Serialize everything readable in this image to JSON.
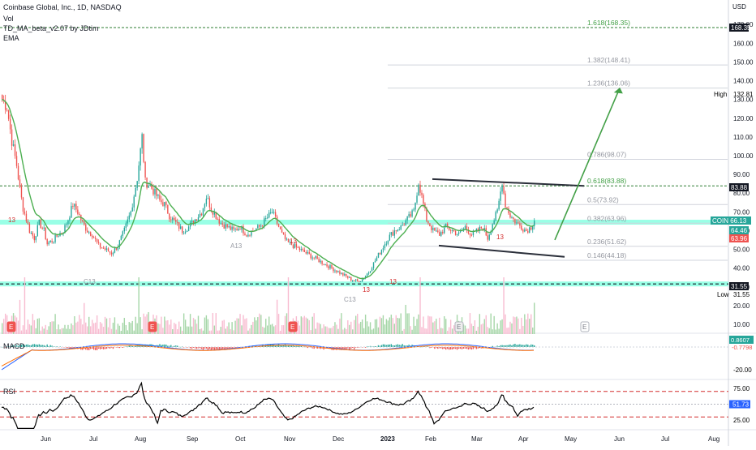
{
  "header": {
    "title": "Coinbase Global, Inc., 1D, NASDAQ",
    "vol": "Vol",
    "indicator": "TD_MA_beta_v2.07 by JDtim",
    "ema": "EMA"
  },
  "panes": {
    "macd": "MACD",
    "rsi": "RSI"
  },
  "currency": "USD",
  "colors": {
    "up": "#26a69a",
    "down": "#ef5350",
    "ema": "#4caf50",
    "band": "#80ffe0",
    "fib": "#b2b5be",
    "green_text": "#43a047",
    "vol_up": "#a5d6a7",
    "vol_down": "#f8bbd0",
    "macd_line": "#2962ff",
    "signal_line": "#ff6d00",
    "rsi_line": "#000000"
  },
  "chart_data": {
    "type": "candlestick",
    "y_axis": {
      "min": 0,
      "max": 180,
      "ticks": [
        10,
        20,
        30,
        40,
        50,
        60,
        70,
        80,
        90,
        100,
        110,
        120,
        130,
        140,
        150,
        160,
        170
      ]
    },
    "x_ticks": [
      "Jun",
      "Jul",
      "Aug",
      "Sep",
      "Oct",
      "Nov",
      "Dec",
      "2023",
      "Feb",
      "Mar",
      "Apr",
      "May",
      "Jun",
      "Jul",
      "Aug"
    ],
    "price_badges": [
      {
        "label": "COIN",
        "value": "66.13"
      },
      {
        "value": "64.46"
      },
      {
        "value": "63.96"
      },
      {
        "value": "83.88"
      },
      {
        "value": "168.35"
      },
      {
        "value": "31.55"
      }
    ],
    "high": {
      "label": "High",
      "value": "132.81"
    },
    "low": {
      "label": "Low",
      "value": "31.55"
    },
    "fib_levels": [
      {
        "label": "1.618(168.35)",
        "value": 168.35
      },
      {
        "label": "1.382(148.41)",
        "value": 148.41
      },
      {
        "label": "1.236(136.06)",
        "value": 136.06
      },
      {
        "label": "0.786(98.07)",
        "value": 98.07
      },
      {
        "label": "0.618(83.88)",
        "value": 83.88
      },
      {
        "label": "0.5(73.92)",
        "value": 73.92
      },
      {
        "label": "0.382(63.96)",
        "value": 63.96
      },
      {
        "label": "0.236(51.62)",
        "value": 51.62
      },
      {
        "label": "0.146(44.18)",
        "value": 44.18
      }
    ],
    "support_band": 31.55,
    "resistance_band": 64.5,
    "channel_upper": [
      [
        0,
        87.5
      ],
      [
        1,
        83.9
      ]
    ],
    "channel_lower": [
      [
        0,
        52.0
      ],
      [
        1,
        46.0
      ]
    ],
    "projection_target": 136.06,
    "td_labels": [
      "13",
      "A13",
      "13",
      "C13",
      "13",
      "C13",
      "13",
      "13"
    ],
    "macd": {
      "values": [
        "0.8607",
        "-0.7798"
      ],
      "ticks": [
        "-20.00"
      ]
    },
    "rsi": {
      "value": "51.73",
      "ticks": [
        "75.00",
        "50.00",
        "25.00"
      ],
      "overbought": 70,
      "oversold": 30
    },
    "earnings_markers": [
      "E",
      "E",
      "E",
      "E",
      "E"
    ],
    "price_path": [
      [
        0,
        130
      ],
      [
        3,
        126
      ],
      [
        6,
        108
      ],
      [
        9,
        95
      ],
      [
        11,
        82
      ],
      [
        13,
        72
      ],
      [
        15,
        66
      ],
      [
        17,
        60
      ],
      [
        20,
        56
      ],
      [
        23,
        64
      ],
      [
        26,
        60
      ],
      [
        28,
        53
      ],
      [
        32,
        55
      ],
      [
        35,
        58
      ],
      [
        38,
        60
      ],
      [
        41,
        66
      ],
      [
        44,
        74
      ],
      [
        47,
        70
      ],
      [
        50,
        64
      ],
      [
        53,
        60
      ],
      [
        56,
        58
      ],
      [
        60,
        52
      ],
      [
        64,
        50
      ],
      [
        68,
        48
      ],
      [
        72,
        52
      ],
      [
        76,
        60
      ],
      [
        80,
        70
      ],
      [
        84,
        88
      ],
      [
        87,
        110
      ],
      [
        89,
        86
      ],
      [
        92,
        84
      ],
      [
        95,
        80
      ],
      [
        98,
        76
      ],
      [
        101,
        74
      ],
      [
        104,
        68
      ],
      [
        108,
        64
      ],
      [
        112,
        60
      ],
      [
        116,
        62
      ],
      [
        120,
        66
      ],
      [
        124,
        70
      ],
      [
        127,
        78
      ],
      [
        130,
        72
      ],
      [
        133,
        68
      ],
      [
        136,
        64
      ],
      [
        140,
        62
      ],
      [
        144,
        60
      ],
      [
        148,
        62
      ],
      [
        152,
        58
      ],
      [
        156,
        60
      ],
      [
        160,
        62
      ],
      [
        164,
        66
      ],
      [
        168,
        70
      ],
      [
        171,
        64
      ],
      [
        174,
        58
      ],
      [
        177,
        54
      ],
      [
        181,
        52
      ],
      [
        185,
        50
      ],
      [
        189,
        48
      ],
      [
        193,
        46
      ],
      [
        197,
        44
      ],
      [
        201,
        42
      ],
      [
        205,
        40
      ],
      [
        209,
        38
      ],
      [
        213,
        36
      ],
      [
        217,
        34
      ],
      [
        221,
        33
      ],
      [
        224,
        34
      ],
      [
        228,
        38
      ],
      [
        232,
        44
      ],
      [
        236,
        50
      ],
      [
        240,
        56
      ],
      [
        244,
        60
      ],
      [
        248,
        62
      ],
      [
        252,
        66
      ],
      [
        256,
        70
      ],
      [
        259,
        86
      ],
      [
        261,
        78
      ],
      [
        264,
        66
      ],
      [
        268,
        60
      ],
      [
        272,
        58
      ],
      [
        276,
        62
      ],
      [
        280,
        60
      ],
      [
        284,
        58
      ],
      [
        288,
        62
      ],
      [
        292,
        58
      ],
      [
        296,
        60
      ],
      [
        299,
        62
      ],
      [
        302,
        56
      ],
      [
        305,
        64
      ],
      [
        308,
        70
      ],
      [
        311,
        86
      ],
      [
        313,
        74
      ],
      [
        316,
        68
      ],
      [
        320,
        64
      ],
      [
        323,
        62
      ],
      [
        326,
        60
      ],
      [
        329,
        62
      ],
      [
        331,
        66
      ]
    ]
  }
}
